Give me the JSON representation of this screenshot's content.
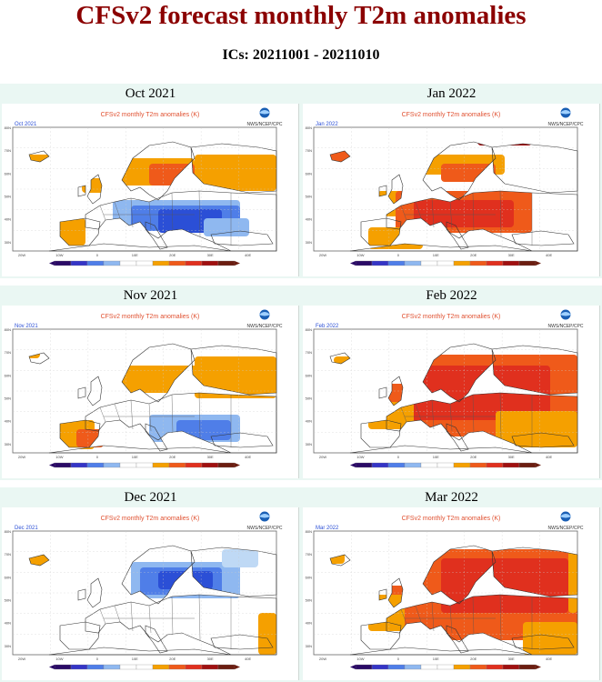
{
  "page": {
    "title": "CFSv2 forecast monthly T2m anomalies",
    "subtitle": "ICs: 20211001 - 20211010"
  },
  "maps": [
    {
      "label": "Oct 2021",
      "plot_title": "CFSv2 monthly T2m anomalies (K)",
      "month_tag": "Oct 2021",
      "pattern": "warm-north-cold-east"
    },
    {
      "label": "Jan 2022",
      "plot_title": "CFSv2 monthly T2m anomalies (K)",
      "month_tag": "Jan 2022",
      "pattern": "warm-central"
    },
    {
      "label": "Nov 2021",
      "plot_title": "CFSv2 monthly T2m anomalies (K)",
      "month_tag": "Nov 2021",
      "pattern": "warm-north-cold-southeast"
    },
    {
      "label": "Feb 2022",
      "plot_title": "CFSv2 monthly T2m anomalies (K)",
      "month_tag": "Feb 2022",
      "pattern": "warm-widespread"
    },
    {
      "label": "Dec 2021",
      "plot_title": "CFSv2 monthly T2m anomalies (K)",
      "month_tag": "Dec 2021",
      "pattern": "cold-north"
    },
    {
      "label": "Mar 2022",
      "plot_title": "CFSv2 monthly T2m anomalies (K)",
      "month_tag": "Mar 2022",
      "pattern": "warm-widespread-strong"
    }
  ],
  "logo_text": "NWS/NCEP/CPC",
  "lat_labels": [
    "80N",
    "70N",
    "60N",
    "50N",
    "40N",
    "30N"
  ],
  "lon_labels": [
    "20W",
    "10W",
    "0",
    "10E",
    "20E",
    "30E",
    "40E"
  ],
  "colors": {
    "deep_blue": "#2b4fd6",
    "mid_blue": "#4f7ee8",
    "light_blue": "#8fb8f0",
    "pale_blue": "#bfd9f5",
    "orange": "#f5a000",
    "red_orange": "#ef5a1a",
    "red": "#e0301e",
    "dark_red": "#a01010",
    "brown": "#6b1d10",
    "panel_bg": "#eaf7f3",
    "title": "#8b0000"
  },
  "colorbar": [
    "#2a0a66",
    "#3535c6",
    "#4f7ee8",
    "#8fb8f0",
    "#ffffff",
    "#ffffff",
    "#f5a000",
    "#ef5a1a",
    "#e0301e",
    "#a01010",
    "#6b1d10"
  ]
}
